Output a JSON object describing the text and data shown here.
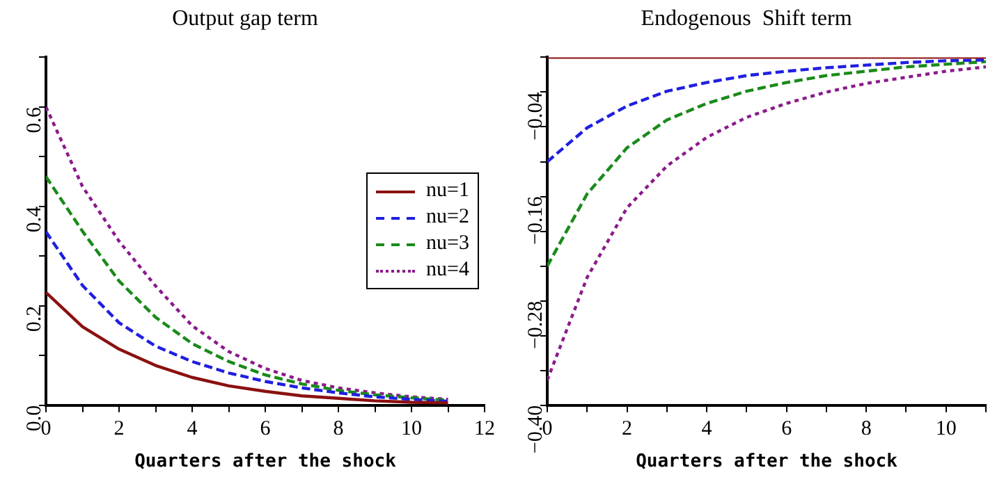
{
  "chart_data": [
    {
      "type": "line",
      "title": "Output gap term",
      "xlabel": "Quarters after the shock",
      "x": [
        0,
        1,
        2,
        3,
        4,
        5,
        6,
        7,
        8,
        9,
        10,
        11
      ],
      "xlim": [
        0,
        12
      ],
      "xticks": [
        0,
        {
          "value": 1,
          "label": null
        },
        2,
        {
          "value": 3,
          "label": null
        },
        4,
        {
          "value": 5,
          "label": null
        },
        6,
        {
          "value": 7,
          "label": null
        },
        8,
        {
          "value": 9,
          "label": null
        },
        10,
        {
          "value": 11,
          "label": null
        },
        12
      ],
      "ylim": [
        0,
        0.7
      ],
      "yticks": [
        {
          "value": 0,
          "label": "0.0"
        },
        {
          "value": 0.1,
          "label": null
        },
        0.2,
        {
          "value": 0.3,
          "label": null
        },
        0.4,
        {
          "value": 0.5,
          "label": null
        },
        0.6,
        {
          "value": 0.7,
          "label": null
        }
      ],
      "grid": false,
      "legend": "right",
      "marker": "none",
      "series": [
        {
          "name": "nu=1",
          "color": "#8b1010",
          "line_style": "solid",
          "values": [
            0.227,
            0.158,
            0.113,
            0.08,
            0.056,
            0.039,
            0.028,
            0.019,
            0.014,
            0.009,
            0.006,
            0.005
          ]
        },
        {
          "name": "nu=2",
          "color": "#1f1fe0",
          "line_style": "dashed",
          "values": [
            0.349,
            0.241,
            0.166,
            0.119,
            0.088,
            0.065,
            0.048,
            0.035,
            0.025,
            0.017,
            0.012,
            0.008
          ]
        },
        {
          "name": "nu=3",
          "color": "#1a8a1a",
          "line_style": "dashed",
          "values": [
            0.46,
            0.35,
            0.25,
            0.177,
            0.124,
            0.088,
            0.061,
            0.043,
            0.03,
            0.021,
            0.015,
            0.01
          ]
        },
        {
          "name": "nu=4",
          "color": "#8b1a8b",
          "line_style": "dotted",
          "values": [
            0.6,
            0.44,
            0.33,
            0.24,
            0.16,
            0.108,
            0.074,
            0.05,
            0.035,
            0.025,
            0.017,
            0.012
          ]
        }
      ]
    },
    {
      "type": "line",
      "title": "Endogenous  Shift term",
      "xlabel": "Quarters after the shock",
      "x": [
        0,
        1,
        2,
        3,
        4,
        5,
        6,
        7,
        8,
        9,
        10,
        11
      ],
      "xlim": [
        0,
        11
      ],
      "xticks": [
        0,
        {
          "value": 1,
          "label": null
        },
        2,
        {
          "value": 3,
          "label": null
        },
        4,
        {
          "value": 5,
          "label": null
        },
        6,
        {
          "value": 7,
          "label": null
        },
        8,
        {
          "value": 9,
          "label": null
        },
        10,
        {
          "value": 11,
          "label": null
        }
      ],
      "ylim": [
        -0.4,
        0
      ],
      "yticks": [
        {
          "value": -0.4,
          "label": "−0.40"
        },
        {
          "value": -0.36,
          "label": null
        },
        {
          "value": -0.32,
          "label": null
        },
        {
          "value": -0.28,
          "label": "−0.28"
        },
        {
          "value": -0.24,
          "label": null
        },
        {
          "value": -0.2,
          "label": null
        },
        {
          "value": -0.16,
          "label": "−0.16"
        },
        {
          "value": -0.12,
          "label": null
        },
        {
          "value": -0.08,
          "label": null
        },
        {
          "value": -0.04,
          "label": "−0.04"
        },
        {
          "value": 0,
          "label": null
        }
      ],
      "grid": false,
      "legend": false,
      "marker": "none",
      "series": [
        {
          "color": "#8b1010",
          "line_style": "solid",
          "values": [
            0,
            0,
            0,
            0,
            0,
            0,
            0,
            0,
            0,
            0,
            0,
            0
          ]
        },
        {
          "color": "#1f1fe0",
          "line_style": "dashed",
          "values": [
            -0.12,
            -0.081,
            -0.056,
            -0.039,
            -0.029,
            -0.021,
            -0.016,
            -0.012,
            -0.009,
            -0.006,
            -0.004,
            -0.003
          ]
        },
        {
          "color": "#1a8a1a",
          "line_style": "dashed",
          "values": [
            -0.24,
            -0.157,
            -0.104,
            -0.072,
            -0.053,
            -0.039,
            -0.029,
            -0.021,
            -0.016,
            -0.011,
            -0.008,
            -0.005
          ]
        },
        {
          "color": "#8b1a8b",
          "line_style": "dotted",
          "values": [
            -0.371,
            -0.253,
            -0.173,
            -0.125,
            -0.092,
            -0.069,
            -0.053,
            -0.04,
            -0.03,
            -0.023,
            -0.016,
            -0.011
          ]
        }
      ]
    }
  ]
}
